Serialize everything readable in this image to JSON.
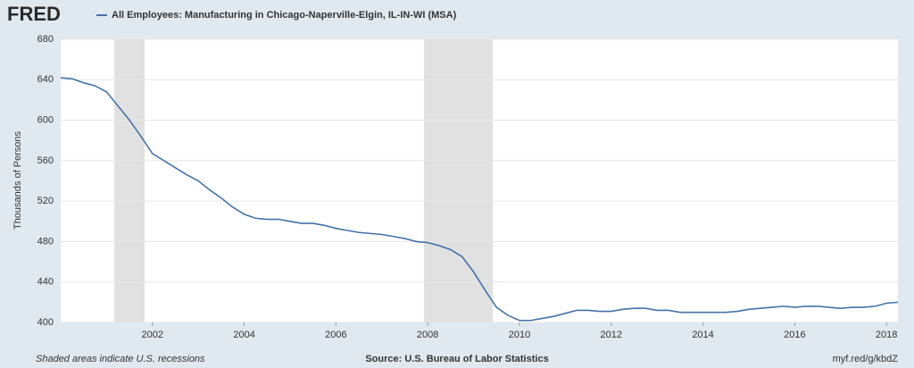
{
  "logo": "FRED",
  "chart_data": {
    "type": "line",
    "y_label": "Thousands of Persons",
    "footer_note": "Shaded areas indicate U.S. recessions",
    "source": "Source: U.S. Bureau of Labor Statistics",
    "url": "myf.red/g/kbdZ",
    "x": [
      2000.0,
      2000.25,
      2000.5,
      2000.75,
      2001.0,
      2001.25,
      2001.5,
      2001.75,
      2002.0,
      2002.25,
      2002.5,
      2002.75,
      2003.0,
      2003.25,
      2003.5,
      2003.75,
      2004.0,
      2004.25,
      2004.5,
      2004.75,
      2005.0,
      2005.25,
      2005.5,
      2005.75,
      2006.0,
      2006.25,
      2006.5,
      2006.75,
      2007.0,
      2007.25,
      2007.5,
      2007.75,
      2008.0,
      2008.25,
      2008.5,
      2008.75,
      2009.0,
      2009.25,
      2009.5,
      2009.75,
      2010.0,
      2010.25,
      2010.5,
      2010.75,
      2011.0,
      2011.25,
      2011.5,
      2011.75,
      2012.0,
      2012.25,
      2012.5,
      2012.75,
      2013.0,
      2013.25,
      2013.5,
      2013.75,
      2014.0,
      2014.25,
      2014.5,
      2014.75,
      2015.0,
      2015.25,
      2015.5,
      2015.75,
      2016.0,
      2016.25,
      2016.5,
      2016.75,
      2017.0,
      2017.25,
      2017.5,
      2017.75,
      2018.0,
      2018.25
    ],
    "series": [
      {
        "name": "All Employees: Manufacturing in Chicago-Naperville-Elgin, IL-IN-WI (MSA)",
        "color": "#4572a7",
        "values": [
          642,
          641,
          637,
          634,
          628,
          614,
          600,
          584,
          567,
          560,
          553,
          546,
          540,
          531,
          523,
          514,
          507,
          503,
          502,
          502,
          500,
          498,
          498,
          496,
          493,
          491,
          489,
          488,
          487,
          485,
          483,
          480,
          479,
          476,
          472,
          465,
          450,
          432,
          415,
          407,
          402,
          402,
          404,
          406,
          409,
          412,
          412,
          411,
          411,
          413,
          414,
          414,
          412,
          412,
          410,
          410,
          410,
          410,
          410,
          411,
          413,
          414,
          415,
          416,
          415,
          416,
          416,
          415,
          414,
          415,
          415,
          416,
          419,
          420
        ]
      }
    ],
    "recessions": [
      [
        2001.17,
        2001.83
      ],
      [
        2007.92,
        2009.42
      ]
    ],
    "recession_color": "#e1e1e1",
    "xlim": [
      2000.0,
      2018.25
    ],
    "xticks": [
      2002,
      2004,
      2006,
      2008,
      2010,
      2012,
      2014,
      2016,
      2018
    ],
    "ylim": [
      400,
      680
    ],
    "yticks": [
      400,
      440,
      480,
      520,
      560,
      600,
      640,
      680
    ],
    "grid": true
  }
}
